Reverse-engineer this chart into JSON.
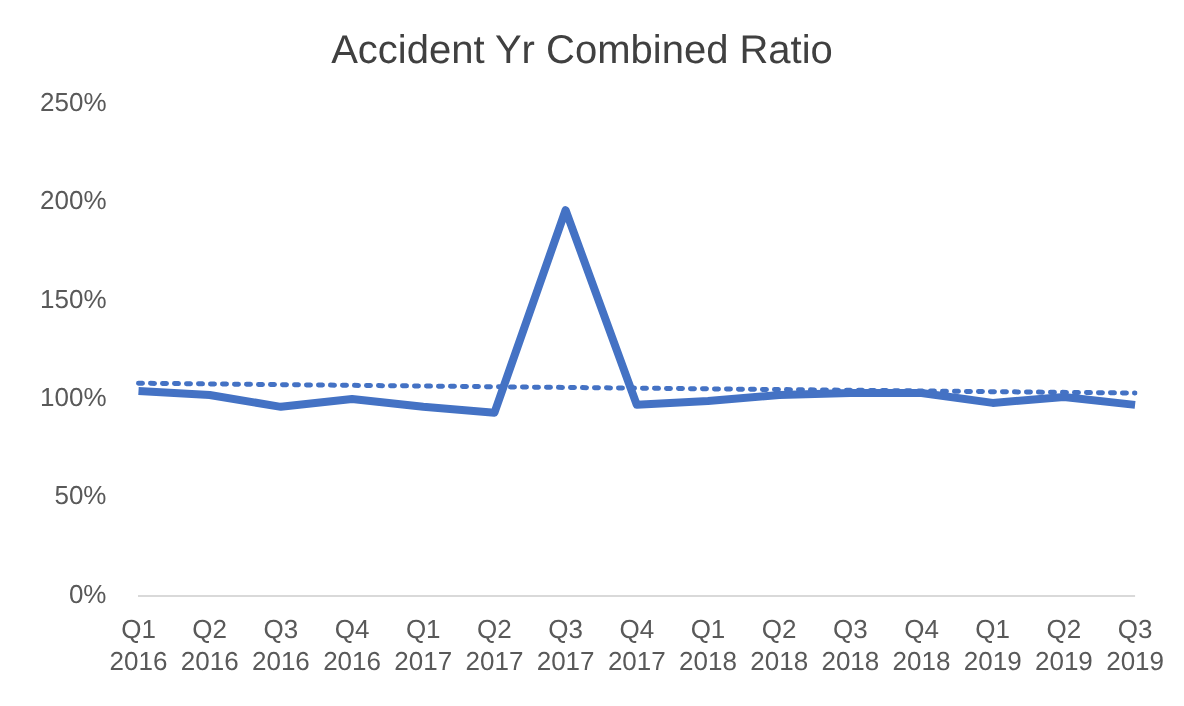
{
  "chart_data": {
    "type": "line",
    "title": "Accident Yr Combined Ratio",
    "categories": [
      "Q1 2016",
      "Q2 2016",
      "Q3 2016",
      "Q4 2016",
      "Q1 2017",
      "Q2 2017",
      "Q3 2017",
      "Q4 2017",
      "Q1 2018",
      "Q2 2018",
      "Q3 2018",
      "Q4 2018",
      "Q1 2019",
      "Q2 2019",
      "Q3 2019"
    ],
    "series": [
      {
        "color": "#4472c4",
        "values": [
          104,
          102,
          96,
          100,
          96,
          93,
          196,
          97,
          99,
          102,
          103,
          103,
          98,
          101,
          97
        ]
      },
      {
        "type": "line",
        "color": "#4472c4",
        "line_style": "dotted",
        "values": [
          108,
          null,
          null,
          null,
          null,
          null,
          null,
          null,
          null,
          null,
          null,
          null,
          null,
          null,
          103
        ]
      }
    ],
    "ylim": [
      0,
      250
    ],
    "yticks": [
      {
        "value": 0,
        "label": "0%"
      },
      {
        "value": 50,
        "label": "50%"
      },
      {
        "value": 100,
        "label": "100%"
      },
      {
        "value": 150,
        "label": "150%"
      },
      {
        "value": 200,
        "label": "200%"
      },
      {
        "value": 250,
        "label": "250%"
      }
    ],
    "grid": false,
    "legend": false,
    "marker": "none"
  }
}
